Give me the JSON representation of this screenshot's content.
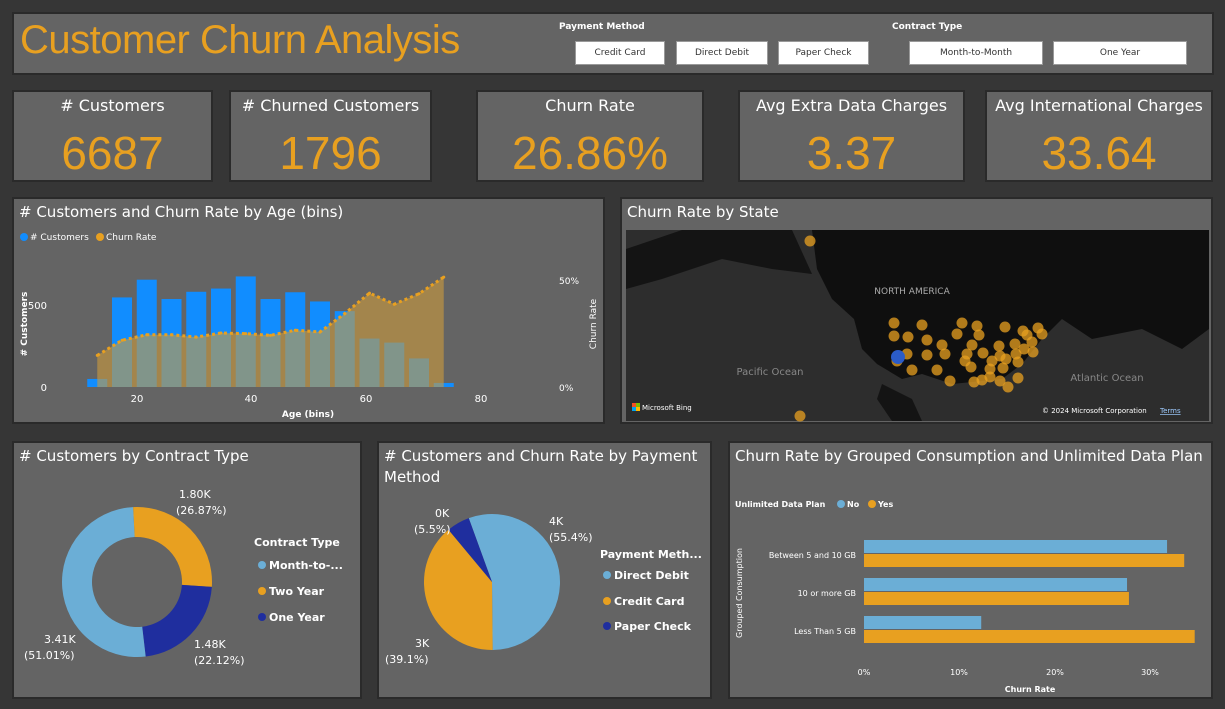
{
  "header": {
    "title": "Customer Churn Analysis",
    "payment_label": "Payment Method",
    "payment_options": [
      "Credit Card",
      "Direct Debit",
      "Paper Check"
    ],
    "contract_label": "Contract Type",
    "contract_options": [
      "Month-to-Month",
      "One Year"
    ]
  },
  "kpis": [
    {
      "label": "# Customers",
      "value": "6687"
    },
    {
      "label": "# Churned Customers",
      "value": "1796"
    },
    {
      "label": "Churn Rate",
      "value": "26.86%"
    },
    {
      "label": "Avg Extra Data Charges",
      "value": "3.37"
    },
    {
      "label": "Avg International Charges",
      "value": "33.64"
    }
  ],
  "colors": {
    "accent": "#e8a020",
    "blue": "#118dff",
    "light_blue": "#6baed6",
    "navy": "#1f2e9e"
  },
  "map": {
    "title": "Churn Rate by State",
    "labels": {
      "na": "NORTH AMERICA",
      "pacific": "Pacific Ocean",
      "atlantic": "Atlantic Ocean"
    },
    "bing": "Microsoft Bing",
    "copyright": "© 2024 Microsoft Corporation",
    "terms": "Terms"
  },
  "chart_data": [
    {
      "type": "bar+area",
      "title": "# Customers and Churn Rate by Age (bins)",
      "legend": [
        "# Customers",
        "Churn Rate"
      ],
      "xlabel": "Age (bins)",
      "ylabel": "# Customers",
      "y2label": "Churn Rate",
      "x": [
        15,
        20,
        25,
        30,
        35,
        40,
        45,
        50,
        55,
        60,
        65,
        70,
        75,
        80,
        85
      ],
      "customers": [
        50,
        555,
        665,
        545,
        590,
        610,
        685,
        545,
        587,
        530,
        470,
        300,
        275,
        177,
        25
      ],
      "churn_rate": [
        14.8,
        21.9,
        24.5,
        24.5,
        23.4,
        25.3,
        25,
        24.2,
        26.6,
        25.8,
        34.4,
        44,
        38.8,
        43.7,
        51.5
      ],
      "xticks": [
        "20",
        "40",
        "60",
        "80"
      ],
      "yticks": [
        "0",
        "500"
      ],
      "y2ticks": [
        "0%",
        "50%"
      ]
    },
    {
      "type": "donut",
      "title": "# Customers by Contract Type",
      "legend_title": "Contract Type",
      "slices": [
        {
          "name": "Month-to-...",
          "value": 51.01,
          "label": "3.41K",
          "pct": "(51.01%)"
        },
        {
          "name": "Two Year",
          "value": 26.87,
          "label": "1.80K",
          "pct": "(26.87%)"
        },
        {
          "name": "One Year",
          "value": 22.12,
          "label": "1.48K",
          "pct": "(22.12%)"
        }
      ]
    },
    {
      "type": "pie",
      "title": "# Customers and Churn Rate by Payment Method",
      "legend_title": "Payment Meth...",
      "slices": [
        {
          "name": "Direct Debit",
          "value": 55.4,
          "label": "4K",
          "pct": "(55.4%)"
        },
        {
          "name": "Credit Card",
          "value": 39.1,
          "label": "3K",
          "pct": "(39.1%)"
        },
        {
          "name": "Paper Check",
          "value": 5.5,
          "label": "0K",
          "pct": "(5.5%)"
        }
      ]
    },
    {
      "type": "bar",
      "title": "Churn Rate by Grouped Consumption and Unlimited Data Plan",
      "legend_title": "Unlimited Data Plan",
      "categories": [
        "Between 5 and 10 GB",
        "10 or more GB",
        "Less Than 5 GB"
      ],
      "series": [
        {
          "name": "No",
          "values": [
            31.8,
            27.6,
            12.3
          ]
        },
        {
          "name": "Yes",
          "values": [
            33.6,
            27.8,
            34.7
          ]
        }
      ],
      "xticks": [
        "0%",
        "10%",
        "20%",
        "30%"
      ],
      "xlabel": "Churn Rate",
      "ylabel": "Grouped Consumption"
    }
  ]
}
